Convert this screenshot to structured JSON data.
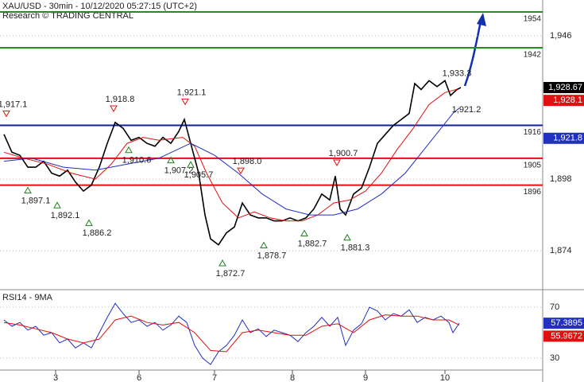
{
  "header": {
    "title": "XAU/USD - 30min - 10/12/2020 05:27:15 (UTC+2)",
    "subtitle": "Research © TRADING CENTRAL"
  },
  "chart_data": [
    {
      "type": "line",
      "xlim": [
        0,
        136.6
      ],
      "ylim": [
        1861.5,
        1958
      ],
      "yticks": [
        {
          "value": 1874,
          "label": "1,874"
        },
        {
          "value": 1898,
          "label": "1,898"
        },
        {
          "value": 1946,
          "label": "1,946"
        }
      ],
      "grid": true,
      "series": [
        {
          "name": "Price",
          "color": "#000000",
          "tag": "1,928.67",
          "x": [
            1,
            3,
            5,
            7,
            9,
            11,
            13,
            15,
            17,
            19,
            21,
            23,
            25,
            27,
            29,
            31,
            33,
            35,
            37,
            39,
            41,
            43,
            45,
            46.4,
            48,
            50,
            51.6,
            53,
            55,
            57,
            59,
            61,
            63,
            65,
            67,
            69,
            71,
            73,
            75,
            77,
            79,
            81,
            83,
            84.4,
            85.6,
            87,
            89,
            91,
            93,
            95,
            97,
            99,
            101,
            103,
            104.4,
            106,
            108,
            110,
            112,
            113.4,
            115,
            116
          ],
          "values": [
            1913,
            1907,
            1906,
            1902,
            1902,
            1904,
            1900,
            1899,
            1901,
            1897,
            1894,
            1896,
            1902,
            1910,
            1917,
            1915,
            1911,
            1912,
            1910,
            1909,
            1912,
            1910,
            1914,
            1918,
            1910,
            1900,
            1886,
            1878,
            1876,
            1880,
            1882,
            1890,
            1886,
            1885,
            1885,
            1884,
            1884,
            1885,
            1884,
            1885,
            1888,
            1893,
            1891,
            1899,
            1888,
            1886,
            1893,
            1895,
            1902,
            1910,
            1913,
            1916,
            1918,
            1920,
            1930,
            1928,
            1931,
            1929,
            1931,
            1926,
            1928,
            1928.67
          ]
        },
        {
          "name": "MA fast",
          "color": "#e01010",
          "tag": "1,928.1",
          "x": [
            1,
            6,
            12,
            18,
            24,
            28,
            32,
            36,
            40,
            46,
            49,
            52,
            56,
            60,
            64,
            68,
            72,
            76,
            80,
            84,
            88,
            92,
            96,
            100,
            104,
            108,
            112,
            115
          ],
          "values": [
            1907,
            1905,
            1903,
            1900,
            1898,
            1903,
            1910,
            1912,
            1911,
            1912,
            1909,
            1900,
            1890,
            1885,
            1887,
            1885,
            1884,
            1884,
            1886,
            1890,
            1891,
            1894,
            1900,
            1908,
            1915,
            1923,
            1927,
            1928.1
          ]
        },
        {
          "name": "MA slow",
          "color": "#2030c0",
          "tag": "1,921.8",
          "x": [
            1,
            8,
            16,
            24,
            32,
            40,
            48,
            54,
            60,
            66,
            72,
            78,
            84,
            90,
            96,
            102,
            108,
            114,
            115.6
          ],
          "values": [
            1904,
            1905,
            1902,
            1901,
            1903,
            1905,
            1910,
            1906,
            1900,
            1893,
            1888,
            1886,
            1886,
            1888,
            1893,
            1900,
            1910,
            1920,
            1921.8
          ]
        }
      ],
      "levels": [
        {
          "value": 1954,
          "color": "#209020"
        },
        {
          "value": 1942,
          "color": "#209020"
        },
        {
          "value": 1916,
          "color": "#1020a0"
        },
        {
          "value": 1905,
          "color": "#e01010"
        },
        {
          "value": 1896,
          "color": "#e01010"
        }
      ],
      "annotations": [
        {
          "x": 1.6,
          "value": 1917.1,
          "label": "1,917.1",
          "kind": "high"
        },
        {
          "x": 7,
          "value": 1897.1,
          "label": "1,897.1",
          "kind": "low"
        },
        {
          "x": 14.4,
          "value": 1892.1,
          "label": "1,892.1",
          "kind": "low"
        },
        {
          "x": 22.4,
          "value": 1886.2,
          "label": "1,886.2",
          "kind": "low"
        },
        {
          "x": 28.6,
          "value": 1918.8,
          "label": "1,918.8",
          "kind": "high"
        },
        {
          "x": 32.4,
          "value": 1910.6,
          "label": "1,910.6",
          "kind": "low"
        },
        {
          "x": 43,
          "value": 1907.2,
          "label": "1,907.2",
          "kind": "low"
        },
        {
          "x": 48,
          "value": 1905.7,
          "label": "1,905.7",
          "kind": "low"
        },
        {
          "x": 46.6,
          "value": 1921.1,
          "label": "1,921.1",
          "kind": "high"
        },
        {
          "x": 56,
          "value": 1872.7,
          "label": "1,872.7",
          "kind": "low"
        },
        {
          "x": 60.6,
          "value": 1898.0,
          "label": "1,898.0",
          "kind": "high"
        },
        {
          "x": 66.4,
          "value": 1878.7,
          "label": "1,878.7",
          "kind": "low"
        },
        {
          "x": 76.6,
          "value": 1882.7,
          "label": "1,882.7",
          "kind": "low"
        },
        {
          "x": 84.8,
          "value": 1900.7,
          "label": "1,900.7",
          "kind": "high"
        },
        {
          "x": 87.4,
          "value": 1881.3,
          "label": "1,881.3",
          "kind": "low"
        },
        {
          "x": 115,
          "value": 1933.3,
          "label": "1,933.3",
          "kind": "text"
        },
        {
          "x": 117.4,
          "value": 1921.2,
          "label": "1,921.2",
          "kind": "text"
        }
      ]
    },
    {
      "type": "line",
      "title": "RSI14 - 9MA",
      "xlim": [
        0,
        136.6
      ],
      "ylim": [
        20.6,
        83.1
      ],
      "yticks": [
        30,
        70
      ],
      "grid": true,
      "xticks": [
        {
          "value": 14,
          "label": "3"
        },
        {
          "value": 35,
          "label": "6"
        },
        {
          "value": 54,
          "label": "7"
        },
        {
          "value": 73.6,
          "label": "8"
        },
        {
          "value": 92,
          "label": "9"
        },
        {
          "value": 112,
          "label": "10"
        }
      ],
      "series": [
        {
          "name": "RSI14",
          "color": "#2030c0",
          "tag": 57.3895,
          "x": [
            1,
            3,
            5,
            7,
            9,
            11,
            13,
            15,
            17,
            19,
            21,
            23,
            25,
            27,
            29,
            31,
            33,
            35,
            37,
            39,
            41,
            43,
            45,
            47,
            49,
            51,
            53,
            55,
            57,
            59,
            61,
            63,
            65,
            67,
            69,
            71,
            73,
            75,
            77,
            79,
            81,
            83,
            85,
            87,
            89,
            91,
            93,
            95,
            97,
            99,
            101,
            103,
            105,
            107,
            109,
            111,
            113,
            114,
            115.6
          ],
          "values": [
            60,
            55,
            58,
            52,
            55,
            48,
            50,
            42,
            45,
            38,
            42,
            38,
            50,
            62,
            73,
            65,
            58,
            60,
            55,
            58,
            52,
            56,
            63,
            58,
            40,
            30,
            25,
            35,
            40,
            48,
            60,
            50,
            53,
            47,
            52,
            50,
            48,
            43,
            50,
            55,
            62,
            55,
            62,
            40,
            52,
            57,
            70,
            67,
            60,
            65,
            63,
            68,
            58,
            62,
            60,
            63,
            58,
            50,
            57.3895
          ]
        },
        {
          "name": "9MA",
          "color": "#e01010",
          "tag": 55.9672,
          "x": [
            1,
            5,
            9,
            13,
            17,
            21,
            25,
            29,
            33,
            37,
            41,
            45,
            49,
            53,
            57,
            61,
            65,
            69,
            73,
            77,
            81,
            85,
            89,
            93,
            97,
            101,
            105,
            109,
            113,
            115.6
          ],
          "values": [
            58,
            56,
            53,
            50,
            45,
            42,
            45,
            60,
            63,
            58,
            56,
            58,
            50,
            36,
            35,
            50,
            52,
            50,
            48,
            48,
            55,
            57,
            50,
            60,
            64,
            63,
            63,
            60,
            60,
            55.9672
          ]
        }
      ]
    }
  ]
}
